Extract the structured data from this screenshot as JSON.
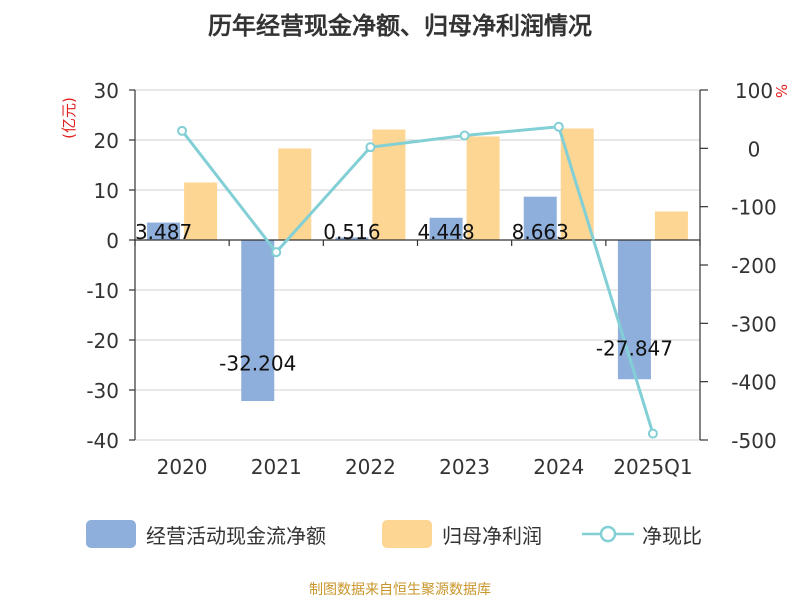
{
  "chart_data": {
    "type": "bar+line",
    "title": "历年经营现金净额、归母净利润情况",
    "categories": [
      "2020",
      "2021",
      "2022",
      "2023",
      "2024",
      "2025Q1"
    ],
    "y_left": {
      "label": "(亿元)",
      "min": -40,
      "max": 30,
      "ticks": [
        30,
        20,
        10,
        0,
        -10,
        -20,
        -30,
        -40
      ]
    },
    "y_right": {
      "label": "%",
      "min": -500,
      "max": 100,
      "ticks": [
        100,
        0,
        -100,
        -200,
        -300,
        -400,
        -500
      ]
    },
    "series": [
      {
        "name": "经营活动现金流净额",
        "type": "bar",
        "axis": "left",
        "color": "#8eaedb",
        "values": [
          3.487,
          -32.204,
          0.516,
          4.448,
          8.663,
          -27.847
        ],
        "labels": [
          "3.487",
          "-32.204",
          "0.516",
          "4.448",
          "8.663",
          "-27.847"
        ]
      },
      {
        "name": "归母净利润",
        "type": "bar",
        "axis": "left",
        "color": "#fdd693",
        "values": [
          11.5,
          18.3,
          22.1,
          20.7,
          22.3,
          5.7
        ]
      },
      {
        "name": "净现比",
        "type": "line",
        "axis": "right",
        "color": "#82cfd6",
        "values": [
          30,
          -178,
          2,
          22,
          37,
          -489
        ]
      }
    ]
  },
  "source": "制图数据来自恒生聚源数据库"
}
